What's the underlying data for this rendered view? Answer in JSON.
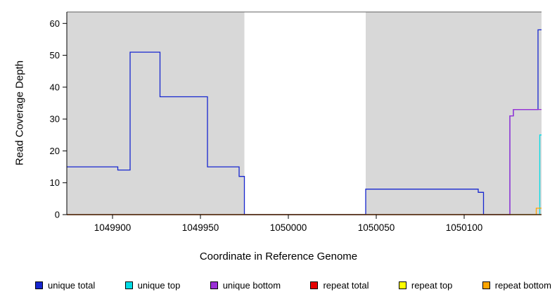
{
  "chart_data": {
    "type": "line",
    "title": "",
    "xlabel": "Coordinate in Reference Genome",
    "ylabel": "Read Coverage Depth",
    "xlim": [
      1049874,
      1050144
    ],
    "ylim": [
      0,
      63.6
    ],
    "xticks": [
      1049900,
      1049950,
      1050000,
      1050050,
      1050100
    ],
    "yticks": [
      0,
      10,
      20,
      30,
      40,
      50,
      60
    ],
    "grid": false,
    "background_color": "#ffffff",
    "region_fill_color": "#d8d8d8",
    "top_boundary_value": 63.6,
    "top_boundary_color": "#606060",
    "background_regions": [
      {
        "x0": 1049874,
        "x1": 1049975,
        "color": "#d8d8d8"
      },
      {
        "x0": 1050044,
        "x1": 1050144,
        "color": "#d8d8d8"
      }
    ],
    "series": [
      {
        "name": "unique total",
        "color": "#1626cf",
        "steps": [
          [
            1049874,
            15
          ],
          [
            1049903,
            14
          ],
          [
            1049910,
            51
          ],
          [
            1049927,
            37
          ],
          [
            1049954,
            15
          ],
          [
            1049972,
            12
          ],
          [
            1049975,
            0
          ],
          [
            1050044,
            8
          ],
          [
            1050108,
            7
          ],
          [
            1050111,
            0
          ],
          [
            1050126,
            31
          ],
          [
            1050128,
            33
          ],
          [
            1050142,
            58
          ]
        ]
      },
      {
        "name": "unique top",
        "color": "#00dce6",
        "steps": [
          [
            1049874,
            0
          ],
          [
            1050143,
            25
          ]
        ]
      },
      {
        "name": "unique bottom",
        "color": "#9a2fd6",
        "steps": [
          [
            1049874,
            0
          ],
          [
            1050126,
            31
          ],
          [
            1050128,
            33
          ]
        ]
      },
      {
        "name": "repeat top",
        "color": "#ffff00",
        "steps": [
          [
            1049874,
            0
          ]
        ]
      },
      {
        "name": "repeat bottom",
        "color": "#ffa500",
        "steps": [
          [
            1049874,
            0
          ],
          [
            1050141,
            2
          ]
        ]
      },
      {
        "name": "repeat total",
        "color": "#e60000",
        "steps": [
          [
            1049874,
            0
          ]
        ]
      }
    ],
    "legend": {
      "position": "bottom",
      "entries": [
        {
          "label": "unique total",
          "color": "#1626cf"
        },
        {
          "label": "unique top",
          "color": "#00dce6"
        },
        {
          "label": "unique bottom",
          "color": "#9a2fd6"
        },
        {
          "label": "repeat total",
          "color": "#e60000"
        },
        {
          "label": "repeat top",
          "color": "#ffff00"
        },
        {
          "label": "repeat bottom",
          "color": "#ffa500"
        }
      ]
    }
  }
}
